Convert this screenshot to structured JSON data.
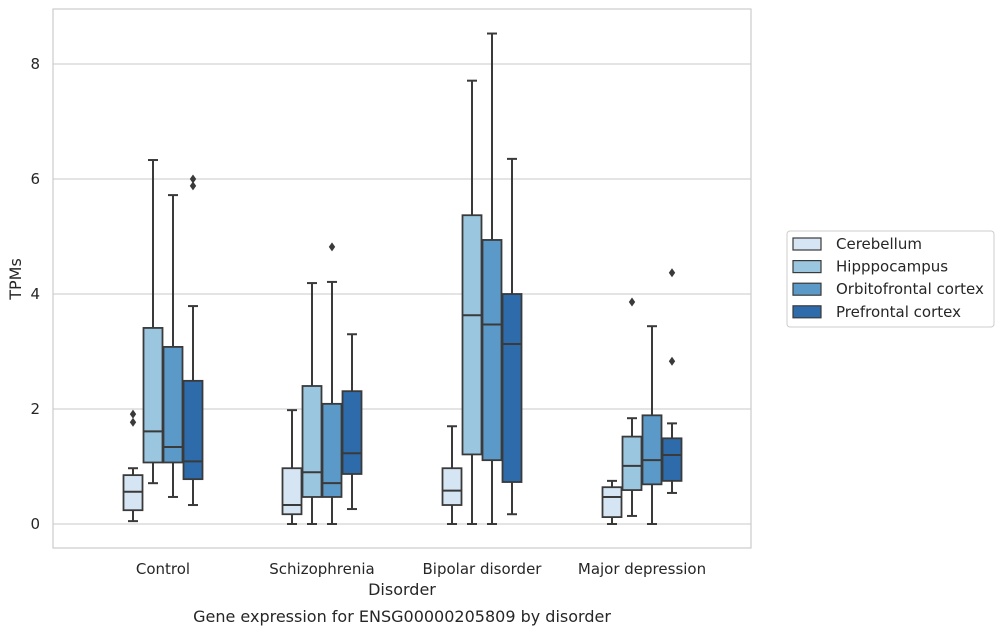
{
  "chart_data": {
    "type": "box",
    "title": "Gene expression for ENSG00000205809 by disorder",
    "xlabel": "Disorder",
    "ylabel": "TPMs",
    "ylim": [
      -0.4,
      9.0
    ],
    "yticks": [
      0,
      2,
      4,
      6,
      8
    ],
    "grid": "horizontal",
    "legend_position": "right",
    "categories": [
      "Control",
      "Schizophrenia",
      "Bipolar disorder",
      "Major depression"
    ],
    "series": [
      {
        "name": "Cerebellum",
        "color": "#d6e5f3",
        "boxes": [
          {
            "whisker_low": 0.05,
            "q1": 0.24,
            "median": 0.56,
            "q3": 0.85,
            "whisker_high": 0.97,
            "outliers": [
              1.77,
              1.91
            ]
          },
          {
            "whisker_low": 0.0,
            "q1": 0.17,
            "median": 0.33,
            "q3": 0.97,
            "whisker_high": 1.98,
            "outliers": []
          },
          {
            "whisker_low": 0.0,
            "q1": 0.33,
            "median": 0.58,
            "q3": 0.97,
            "whisker_high": 1.7,
            "outliers": []
          },
          {
            "whisker_low": 0.0,
            "q1": 0.12,
            "median": 0.47,
            "q3": 0.64,
            "whisker_high": 0.75,
            "outliers": []
          }
        ]
      },
      {
        "name": "Hipppocampus",
        "color": "#9ac7df",
        "boxes": [
          {
            "whisker_low": 0.71,
            "q1": 1.07,
            "median": 1.61,
            "q3": 3.41,
            "whisker_high": 6.33,
            "outliers": []
          },
          {
            "whisker_low": 0.0,
            "q1": 0.47,
            "median": 0.9,
            "q3": 2.4,
            "whisker_high": 4.19,
            "outliers": []
          },
          {
            "whisker_low": 0.0,
            "q1": 1.21,
            "median": 3.63,
            "q3": 5.37,
            "whisker_high": 7.71,
            "outliers": []
          },
          {
            "whisker_low": 0.14,
            "q1": 0.59,
            "median": 1.01,
            "q3": 1.52,
            "whisker_high": 1.84,
            "outliers": [
              3.86
            ]
          }
        ]
      },
      {
        "name": "Orbitofrontal cortex",
        "color": "#5b9ac8",
        "boxes": [
          {
            "whisker_low": 0.47,
            "q1": 1.07,
            "median": 1.34,
            "q3": 3.08,
            "whisker_high": 5.72,
            "outliers": []
          },
          {
            "whisker_low": 0.0,
            "q1": 0.47,
            "median": 0.71,
            "q3": 2.09,
            "whisker_high": 4.21,
            "outliers": [
              4.82
            ]
          },
          {
            "whisker_low": 0.0,
            "q1": 1.11,
            "median": 3.47,
            "q3": 4.94,
            "whisker_high": 8.53,
            "outliers": []
          },
          {
            "whisker_low": 0.0,
            "q1": 0.69,
            "median": 1.11,
            "q3": 1.89,
            "whisker_high": 3.44,
            "outliers": []
          }
        ]
      },
      {
        "name": "Prefrontal cortex",
        "color": "#2d6bab",
        "boxes": [
          {
            "whisker_low": 0.33,
            "q1": 0.78,
            "median": 1.09,
            "q3": 2.49,
            "whisker_high": 3.79,
            "outliers": [
              5.88,
              6.0
            ]
          },
          {
            "whisker_low": 0.26,
            "q1": 0.87,
            "median": 1.23,
            "q3": 2.31,
            "whisker_high": 3.3,
            "outliers": []
          },
          {
            "whisker_low": 0.17,
            "q1": 0.73,
            "median": 3.13,
            "q3": 4.0,
            "whisker_high": 6.35,
            "outliers": []
          },
          {
            "whisker_low": 0.54,
            "q1": 0.75,
            "median": 1.2,
            "q3": 1.49,
            "whisker_high": 1.75,
            "outliers": [
              2.83,
              4.37
            ]
          }
        ]
      }
    ]
  }
}
